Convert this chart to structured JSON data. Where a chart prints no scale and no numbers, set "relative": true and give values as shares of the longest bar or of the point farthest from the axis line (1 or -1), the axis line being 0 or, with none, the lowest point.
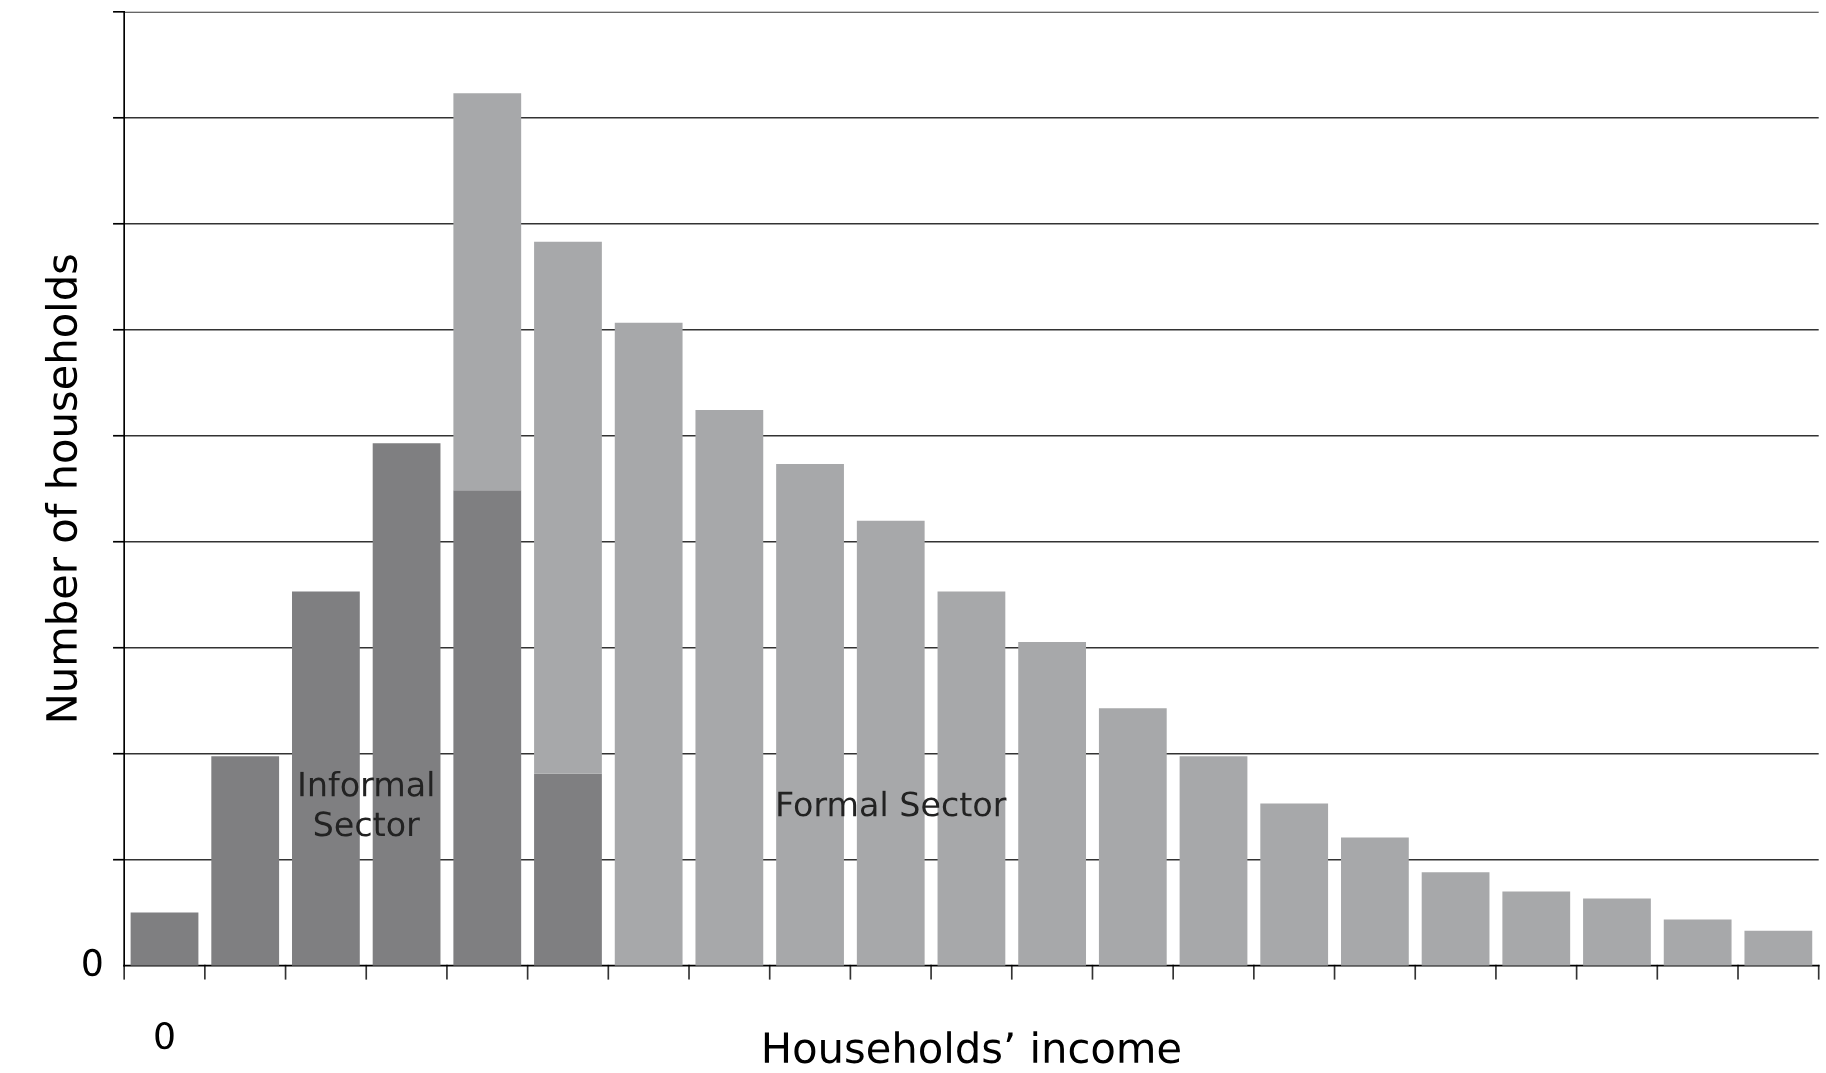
{
  "chart_data": {
    "type": "bar",
    "stacked": true,
    "relative": true,
    "xlabel": "Households’ income",
    "ylabel": "Number of households",
    "categories": [
      "0",
      null,
      null,
      null,
      null,
      null,
      null,
      null,
      null,
      null,
      null,
      null,
      null,
      null,
      null,
      null,
      null,
      null,
      null,
      null,
      null
    ],
    "series": [
      {
        "name": "Informal\nSector",
        "color": "#7f7f81",
        "values": [
          0.061,
          0.24,
          0.429,
          0.599,
          0.545,
          0.22,
          null,
          null,
          null,
          null,
          null,
          null,
          null,
          null,
          null,
          null,
          null,
          null,
          null,
          null,
          null
        ]
      },
      {
        "name": "Formal Sector",
        "color": "#a7a8aa",
        "values": [
          null,
          null,
          null,
          null,
          0.455,
          0.61,
          0.737,
          0.637,
          0.575,
          0.51,
          0.429,
          0.371,
          0.295,
          0.24,
          0.186,
          0.147,
          0.107,
          0.085,
          0.077,
          0.053,
          0.04
        ]
      }
    ],
    "annotations": [
      "0"
    ],
    "grid": "y",
    "legend": false
  }
}
